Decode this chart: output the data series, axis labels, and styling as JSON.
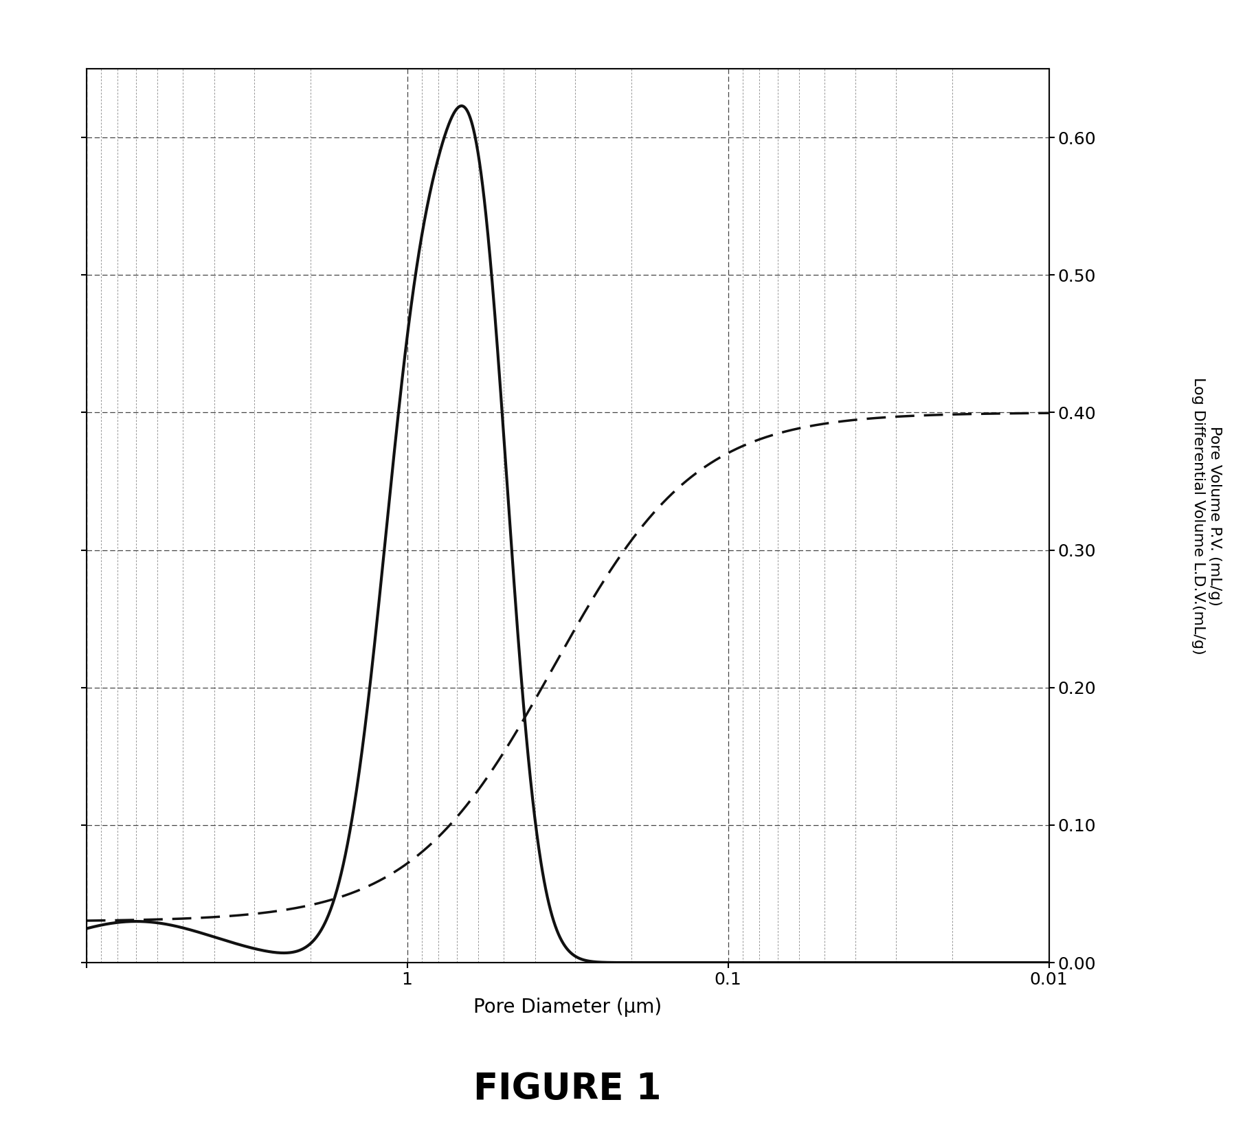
{
  "title": "FIGURE 1",
  "xlabel": "Pore Diameter (μm)",
  "ylabel_right_top": "Pore Volume P.V. (mL/g)",
  "ylabel_right_bot": "Log Differential Volume L.D.V.(mL/g)",
  "xmin": 10,
  "xmax": 0.01,
  "ymin": 0.0,
  "ymax": 0.65,
  "yticks": [
    0.0,
    0.1,
    0.2,
    0.3,
    0.4,
    0.5,
    0.6
  ],
  "background_color": "#ffffff",
  "line_color": "#111111",
  "grid_color": "#444444",
  "figure_color": "#f0f0f0"
}
